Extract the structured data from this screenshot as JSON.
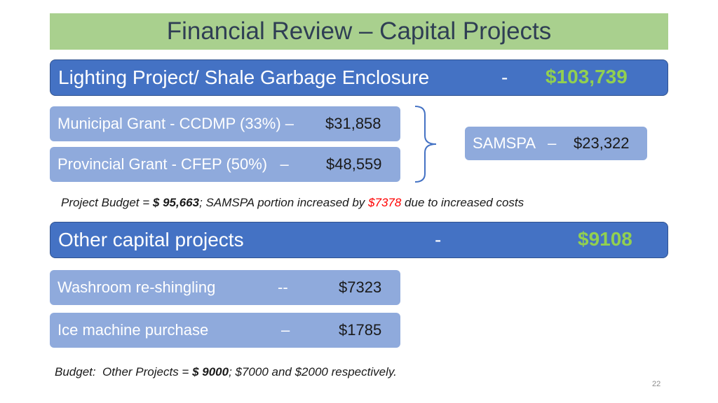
{
  "slide": {
    "title": "Financial Review – Capital Projects",
    "page_number": "22"
  },
  "lighting": {
    "label": "Lighting Project/ Shale Garbage Enclosure",
    "dash": "-",
    "amount": "$103,739"
  },
  "grants": [
    {
      "label": "Municipal Grant - CCDMP (33%) –",
      "amount": "$31,858"
    },
    {
      "label": "Provincial Grant - CFEP (50%)   –",
      "amount": "$48,559"
    }
  ],
  "samspa": {
    "label": "SAMSPA   –",
    "amount": "$23,322"
  },
  "note1": {
    "prefix": "Project Budget = ",
    "budget": "$ 95,663",
    "middle": "; SAMSPA portion increased by ",
    "increase": "$7378",
    "suffix": " due to increased costs"
  },
  "other": {
    "label": "Other capital projects",
    "dash": "-",
    "amount": "$9108"
  },
  "projects": [
    {
      "label": "Washroom re-shingling",
      "dash": "--",
      "amount": "$7323"
    },
    {
      "label": "Ice machine purchase",
      "dash": "–",
      "amount": "$1785"
    }
  ],
  "note2": {
    "prefix": "Budget:  Other Projects = ",
    "budget": "$ 9000",
    "suffix": "; $7000 and $2000 respectively."
  },
  "colors": {
    "title_bg": "#a9d08e",
    "band_bg": "#4472c4",
    "box_bg": "#8faadc",
    "amount_green": "#92d050",
    "highlight_red": "#ff0000"
  }
}
